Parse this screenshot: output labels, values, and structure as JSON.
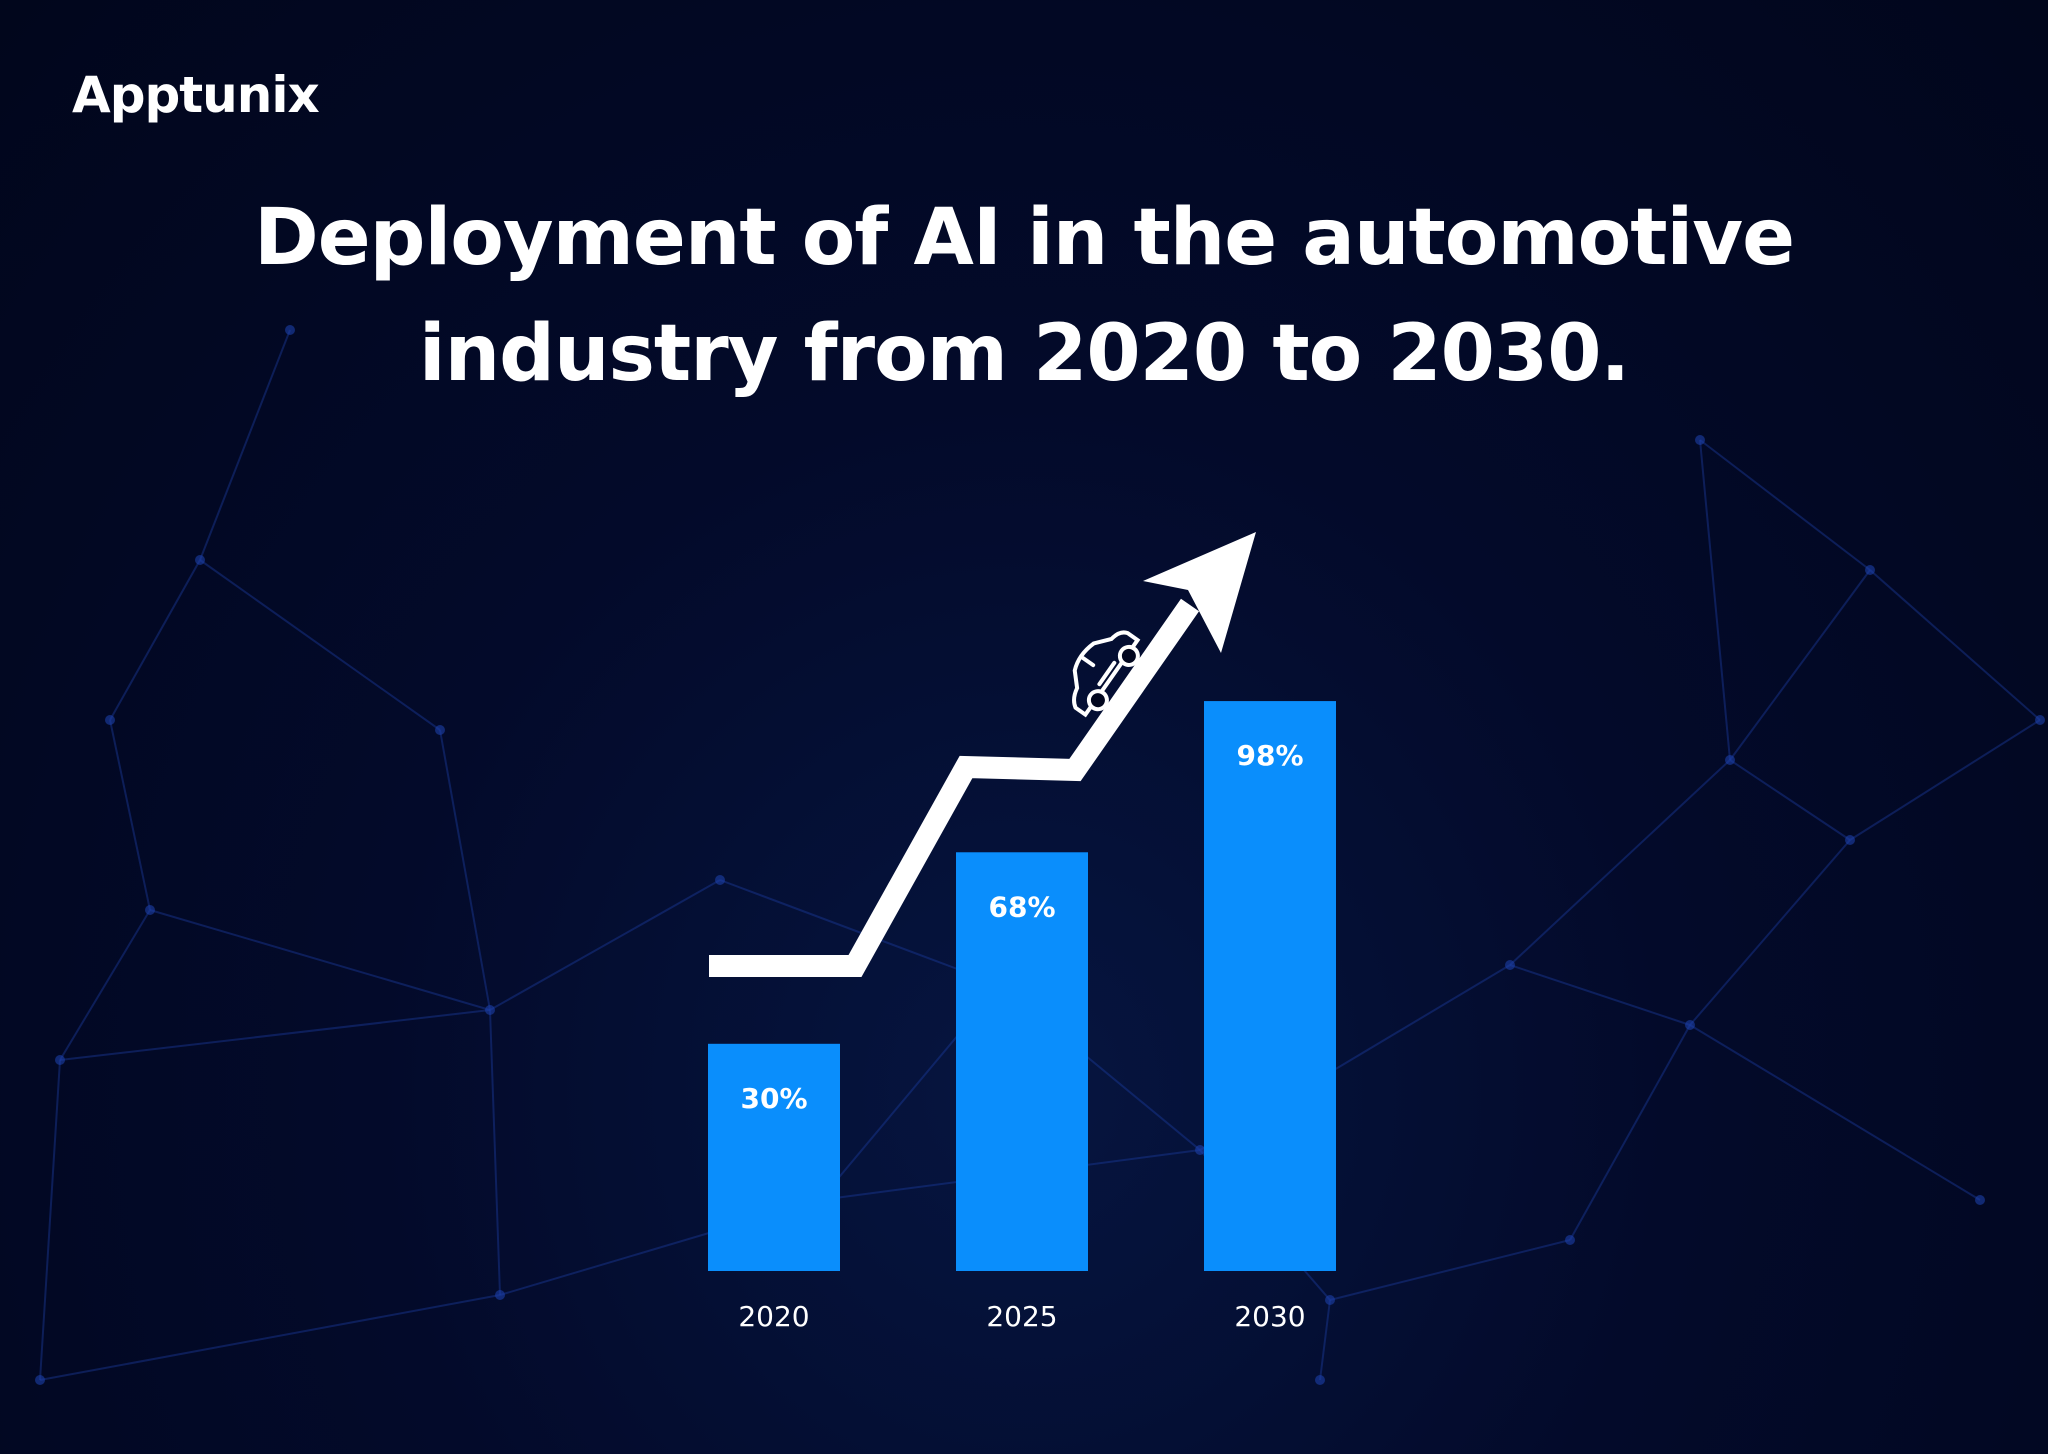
{
  "brand": {
    "logo_text": "Apptunix"
  },
  "chart_data": {
    "type": "bar",
    "title_lines": [
      "Deployment of AI in the automotive",
      "industry from 2020 to 2030."
    ],
    "categories": [
      "2020",
      "2025",
      "2030"
    ],
    "values": [
      30,
      68,
      98
    ],
    "value_labels": [
      "30%",
      "68%",
      "98%"
    ],
    "xlabel": "",
    "ylabel": "",
    "grid": false,
    "bar_color": "#0a8efc",
    "trend_arrow_color": "#ffffff",
    "decoration_icon": "car-icon"
  }
}
